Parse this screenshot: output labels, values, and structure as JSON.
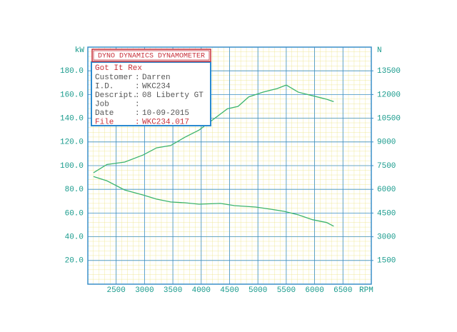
{
  "chart_data": {
    "type": "line",
    "header": "DYNO DYNAMICS DYNAMOMETER",
    "info": {
      "name": "Got It Rex",
      "rows": [
        {
          "label": "Customer",
          "value": "Darren"
        },
        {
          "label": "I.D.",
          "value": "WKC234"
        },
        {
          "label": "Descript.",
          "value": "08 Liberty GT"
        },
        {
          "label": "Job"
        },
        {
          "label": "Date",
          "value": "10-09-2015"
        },
        {
          "label": "File",
          "value": "WKC234.017"
        }
      ]
    },
    "ylabel": "kW",
    "y2label": "N",
    "xlabel": "RPM",
    "xlim": [
      2000,
      7000
    ],
    "xticks": [
      2500,
      3000,
      3500,
      4000,
      4500,
      5000,
      5500,
      6000,
      6500
    ],
    "ylim": [
      0,
      200
    ],
    "yticks": [
      {
        "value": 20,
        "label": "20.0"
      },
      {
        "value": 40,
        "label": "40.0"
      },
      {
        "value": 60,
        "label": "60.0"
      },
      {
        "value": 80,
        "label": "80.0"
      },
      {
        "value": 100,
        "label": "100.0"
      },
      {
        "value": 120,
        "label": "120.0"
      },
      {
        "value": 140,
        "label": "140.0"
      },
      {
        "value": 160,
        "label": "160.0"
      },
      {
        "value": 180,
        "label": "180.0"
      }
    ],
    "y2lim": [
      0,
      15000
    ],
    "y2ticks": [
      1500,
      3000,
      4500,
      6000,
      7500,
      9000,
      10500,
      12000,
      13500
    ],
    "grid": true,
    "series": [
      {
        "color": "#3cb46e",
        "axis": "y",
        "x": [
          2100,
          2337,
          2650,
          2975,
          3212,
          3462,
          3712,
          3962,
          4212,
          4462,
          4650,
          4837,
          5087,
          5337,
          5500,
          5712,
          5962,
          6212,
          6337
        ],
        "values": [
          94,
          101,
          103,
          109,
          115,
          117,
          124,
          130,
          139,
          148,
          150,
          158,
          162,
          165,
          168,
          162,
          159,
          156,
          154
        ]
      },
      {
        "color": "#3cb46e",
        "axis": "y2",
        "x": [
          2100,
          2337,
          2650,
          2975,
          3212,
          3462,
          3712,
          3962,
          4337,
          4587,
          4962,
          5212,
          5462,
          5712,
          5962,
          6212,
          6337
        ],
        "values": [
          6810,
          6540,
          5960,
          5640,
          5380,
          5200,
          5150,
          5060,
          5110,
          4970,
          4880,
          4750,
          4610,
          4390,
          4080,
          3900,
          3670
        ]
      }
    ]
  }
}
